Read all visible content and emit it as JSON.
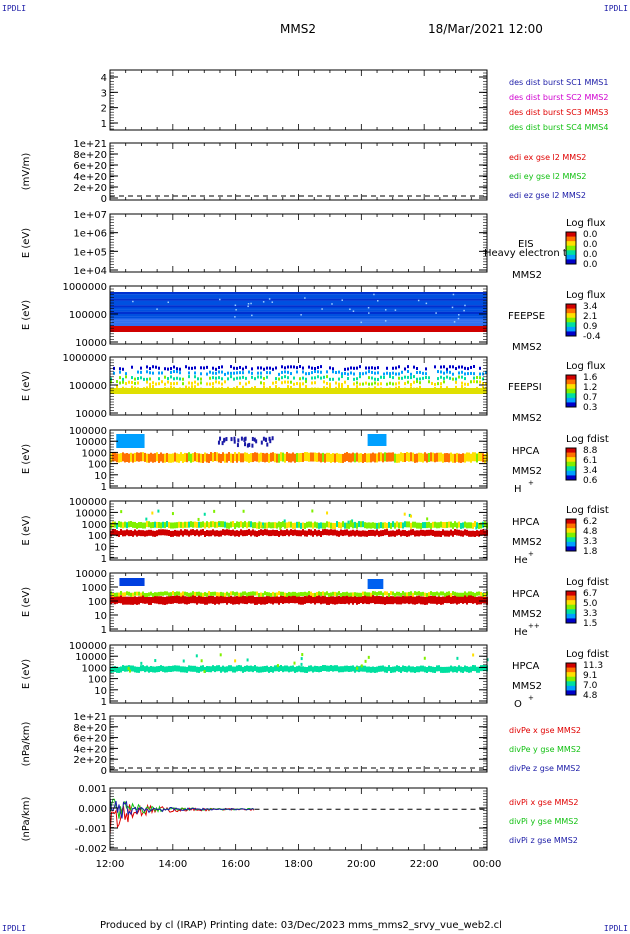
{
  "corner_labels": {
    "top_left": "IPDLI",
    "top_right": "IPDLI",
    "bottom_left": "IPDLI",
    "bottom_right": "IPDLI"
  },
  "header": {
    "spacecraft": "MMS2",
    "datetime": "18/Mar/2021 12:00"
  },
  "footer": {
    "text": "Produced by cl (IRAP)   Printing date: 03/Dec/2023   mms_mms2_srvy_vue_web2.cl"
  },
  "colors": {
    "red": "#e00000",
    "magenta": "#d000d0",
    "green": "#10c010",
    "blue": "#1a1aa6",
    "spectrogram_scale": [
      "#0000c8",
      "#00a0ff",
      "#00e0a0",
      "#80f000",
      "#ffe000",
      "#ff7000",
      "#d00000"
    ]
  },
  "chart_data": [
    {
      "type": "line",
      "panel": "burst",
      "yticks": [
        "4",
        "3",
        "2",
        "1"
      ],
      "legend": [
        {
          "name": "des dist burst SC1 MMS1",
          "color": "#1a1aa6"
        },
        {
          "name": "des dist burst SC2 MMS2",
          "color": "#d000d0"
        },
        {
          "name": "des dist burst SC3 MMS3",
          "color": "#e00000"
        },
        {
          "name": "des dist burst SC4 MMS4",
          "color": "#10c010"
        }
      ]
    },
    {
      "type": "line",
      "panel": "edi",
      "ylabel": "(mV/m)",
      "yticks": [
        "1e+21",
        "8e+20",
        "6e+20",
        "4e+20",
        "2e+20",
        "0"
      ],
      "dashed_zero": true,
      "legend": [
        {
          "name": "edi ex gse l2 MMS2",
          "color": "#e00000"
        },
        {
          "name": "edi ey gse l2 MMS2",
          "color": "#10c010"
        },
        {
          "name": "edi ez gse l2 MMS2",
          "color": "#1a1aa6"
        }
      ]
    },
    {
      "type": "heatmap",
      "panel": "eis",
      "ylabel": "E (eV)",
      "yticks": [
        "1e+07",
        "1e+06",
        "1e+05",
        "1e+04"
      ],
      "yscale": "log",
      "instrument": "EIS",
      "spacecraft": "MMS2",
      "overlay_text": "Heavy electron tc",
      "colorbar_title": "Log flux",
      "colorbar_ticks": [
        "0.0",
        "0.0",
        "0.0",
        "0.0"
      ]
    },
    {
      "type": "heatmap",
      "panel": "feepse",
      "ylabel": "E (eV)",
      "yticks": [
        "1000000",
        "100000",
        "10000"
      ],
      "yscale": "log",
      "instrument": "FEEPSE",
      "spacecraft": "MMS2",
      "colorbar_title": "Log flux",
      "colorbar_ticks": [
        "3.4",
        "2.1",
        "0.9",
        "-0.4"
      ],
      "coverage": {
        "x_start_hour": 12.0,
        "x_end_hour": 24.0
      }
    },
    {
      "type": "heatmap",
      "panel": "feepsi",
      "ylabel": "E (eV)",
      "yticks": [
        "1000000",
        "100000",
        "10000"
      ],
      "yscale": "log",
      "instrument": "FEEPSI",
      "spacecraft": "MMS2",
      "colorbar_title": "Log flux",
      "colorbar_ticks": [
        "1.6",
        "1.2",
        "0.7",
        "0.3"
      ],
      "coverage": {
        "x_start_hour": 12.0,
        "x_end_hour": 24.0
      }
    },
    {
      "type": "heatmap",
      "panel": "hpca_h",
      "ylabel": "E (eV)",
      "yticks": [
        "100000",
        "10000",
        "1000",
        "100",
        "10",
        "1"
      ],
      "yscale": "log",
      "instrument": "HPCA",
      "spacecraft": "MMS2",
      "species": "H",
      "charge": "+",
      "colorbar_title": "Log fdist",
      "colorbar_ticks": [
        "8.8",
        "6.1",
        "3.4",
        "0.6"
      ],
      "coverage": {
        "x_start_hour": 12.0,
        "x_end_hour": 24.0
      }
    },
    {
      "type": "heatmap",
      "panel": "hpca_he1",
      "ylabel": "E (eV)",
      "yticks": [
        "100000",
        "10000",
        "1000",
        "100",
        "10",
        "1"
      ],
      "yscale": "log",
      "instrument": "HPCA",
      "spacecraft": "MMS2",
      "species": "He",
      "charge": "+",
      "colorbar_title": "Log fdist",
      "colorbar_ticks": [
        "6.2",
        "4.8",
        "3.3",
        "1.8"
      ],
      "coverage": {
        "x_start_hour": 12.0,
        "x_end_hour": 24.0
      }
    },
    {
      "type": "heatmap",
      "panel": "hpca_he2",
      "ylabel": "E (eV)",
      "yticks": [
        "10000",
        "1000",
        "100",
        "10",
        "1"
      ],
      "yscale": "log",
      "instrument": "HPCA",
      "spacecraft": "MMS2",
      "species": "He",
      "charge": "++",
      "colorbar_title": "Log fdist",
      "colorbar_ticks": [
        "6.7",
        "5.0",
        "3.3",
        "1.5"
      ],
      "coverage": {
        "x_start_hour": 12.0,
        "x_end_hour": 24.0
      }
    },
    {
      "type": "heatmap",
      "panel": "hpca_o",
      "ylabel": "E (eV)",
      "yticks": [
        "100000",
        "10000",
        "1000",
        "100",
        "10",
        "1"
      ],
      "yscale": "log",
      "instrument": "HPCA",
      "spacecraft": "MMS2",
      "species": "O",
      "charge": "+",
      "colorbar_title": "Log fdist",
      "colorbar_ticks": [
        "11.3",
        "9.1",
        "7.0",
        "4.8"
      ],
      "coverage": {
        "x_start_hour": 12.0,
        "x_end_hour": 24.0
      }
    },
    {
      "type": "line",
      "panel": "divpe",
      "ylabel": "(nPa/km)",
      "yticks": [
        "1e+21",
        "8e+20",
        "6e+20",
        "4e+20",
        "2e+20",
        "0"
      ],
      "dashed_zero": true,
      "legend": [
        {
          "name": "divPe x gse MMS2",
          "color": "#e00000"
        },
        {
          "name": "divPe y gse MMS2",
          "color": "#10c010"
        },
        {
          "name": "divPe z gse MMS2",
          "color": "#1a1aa6"
        }
      ]
    },
    {
      "type": "line",
      "panel": "divpi",
      "ylabel": "(nPa/km)",
      "yticks": [
        "0.001",
        "0.000",
        "-0.001",
        "-0.002"
      ],
      "ylim": [
        -0.0025,
        0.0013
      ],
      "dashed_zero": true,
      "legend": [
        {
          "name": "divPi x gse MMS2",
          "color": "#e00000"
        },
        {
          "name": "divPi y gse MMS2",
          "color": "#10c010"
        },
        {
          "name": "divPi z gse MMS2",
          "color": "#1a1aa6"
        }
      ],
      "coverage": {
        "x_start_hour": 12.0,
        "x_end_hour": 16.6
      }
    }
  ],
  "xaxis": {
    "ticks": [
      "12:00",
      "14:00",
      "16:00",
      "18:00",
      "20:00",
      "22:00",
      "00:00"
    ],
    "range_hours": [
      12,
      24
    ]
  }
}
